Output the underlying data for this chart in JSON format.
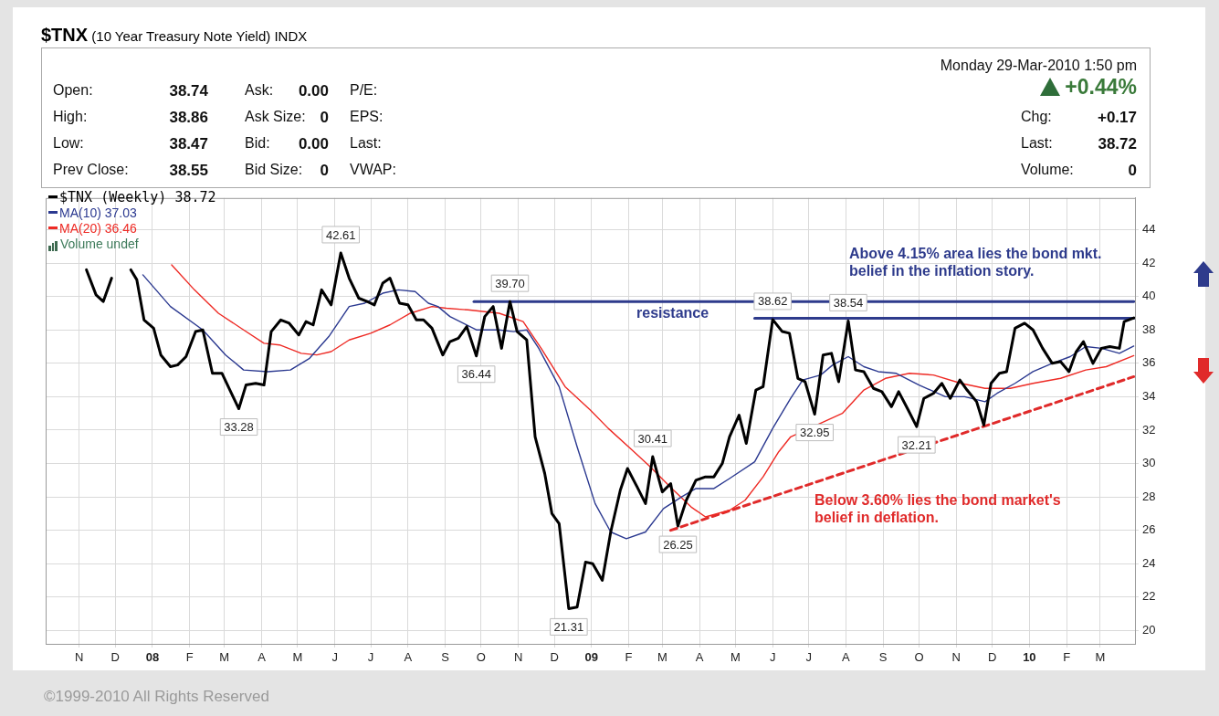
{
  "chart_data": [
    {
      "type": "other",
      "title": "$TNX (10 Year Treasury Note Yield) INDX",
      "annotations": [
        "Open:",
        "38.74",
        "Ask:",
        "0.00",
        "P/E:",
        "High:",
        "38.86",
        "Ask Size:",
        "0",
        "EPS:",
        "Low:",
        "38.47",
        "Bid:",
        "0.00",
        "Last:",
        "Prev Close:",
        "38.55",
        "Bid Size:",
        "0",
        "VWAP:",
        "Monday  29-Mar-2010  1:50 pm",
        "+0.44%",
        "Chg:",
        "+0.17",
        "Last:",
        "38.72",
        "Volume:",
        "0",
        "©1999-2010 All Rights Reserved"
      ]
    },
    {
      "type": "line",
      "xlim": [
        "2007-10-04",
        "2010-03-30"
      ],
      "xticks": [
        {
          "value": "2007-11-01",
          "label": "N"
        },
        {
          "value": "2007-12-01",
          "label": "D"
        },
        {
          "value": "2008-01-01",
          "label": "08"
        },
        {
          "value": "2008-02-01",
          "label": "F"
        },
        {
          "value": "2008-03-01",
          "label": "M"
        },
        {
          "value": "2008-04-01",
          "label": "A"
        },
        {
          "value": "2008-05-01",
          "label": "M"
        },
        {
          "value": "2008-06-01",
          "label": "J"
        },
        {
          "value": "2008-07-01",
          "label": "J"
        },
        {
          "value": "2008-08-01",
          "label": "A"
        },
        {
          "value": "2008-09-01",
          "label": "S"
        },
        {
          "value": "2008-10-01",
          "label": "O"
        },
        {
          "value": "2008-11-01",
          "label": "N"
        },
        {
          "value": "2008-12-01",
          "label": "D"
        },
        {
          "value": "2009-01-01",
          "label": "09"
        },
        {
          "value": "2009-02-01",
          "label": "F"
        },
        {
          "value": "2009-03-01",
          "label": "M"
        },
        {
          "value": "2009-04-01",
          "label": "A"
        },
        {
          "value": "2009-05-01",
          "label": "M"
        },
        {
          "value": "2009-06-01",
          "label": "J"
        },
        {
          "value": "2009-07-01",
          "label": "J"
        },
        {
          "value": "2009-08-01",
          "label": "A"
        },
        {
          "value": "2009-09-01",
          "label": "S"
        },
        {
          "value": "2009-10-01",
          "label": "O"
        },
        {
          "value": "2009-11-01",
          "label": "N"
        },
        {
          "value": "2009-12-01",
          "label": "D"
        },
        {
          "value": "2010-01-01",
          "label": "10"
        },
        {
          "value": "2010-02-01",
          "label": "F"
        },
        {
          "value": "2010-03-01",
          "label": "M"
        }
      ],
      "ylim": [
        19.2,
        45.9
      ],
      "yticks": [
        20,
        22,
        24,
        26,
        28,
        30,
        32,
        34,
        36,
        38,
        40,
        42,
        44
      ],
      "grid": true,
      "legend": "top left",
      "marker": "none",
      "series": [
        {
          "name": "$TNX (Weekly) 38.72",
          "type": "line",
          "color": "#000000",
          "x": [
            "2007-11-07",
            "2007-11-15",
            "2007-11-21",
            "2007-11-28",
            "2007-12-05",
            "2007-12-14",
            "2007-12-19",
            "2007-12-25",
            "2008-01-02",
            "2008-01-08",
            "2008-01-16",
            "2008-01-22",
            "2008-01-29",
            "2008-02-06",
            "2008-02-12",
            "2008-02-20",
            "2008-02-28",
            "2008-03-13",
            "2008-03-19",
            "2008-03-27",
            "2008-04-03",
            "2008-04-09",
            "2008-04-17",
            "2008-04-24",
            "2008-05-02",
            "2008-05-08",
            "2008-05-14",
            "2008-05-21",
            "2008-05-29",
            "2008-06-06",
            "2008-06-13",
            "2008-06-21",
            "2008-06-28",
            "2008-07-04",
            "2008-07-11",
            "2008-07-17",
            "2008-07-25",
            "2008-08-01",
            "2008-08-08",
            "2008-08-14",
            "2008-08-21",
            "2008-08-30",
            "2008-09-05",
            "2008-09-12",
            "2008-09-19",
            "2008-09-27",
            "2008-10-04",
            "2008-10-11",
            "2008-10-18",
            "2008-10-25",
            "2008-10-31",
            "2008-11-08",
            "2008-11-15",
            "2008-11-23",
            "2008-11-29",
            "2008-12-05",
            "2008-12-13",
            "2008-12-20",
            "2008-12-27",
            "2009-01-02",
            "2009-01-10",
            "2009-01-17",
            "2009-01-25",
            "2009-01-31",
            "2009-02-08",
            "2009-02-15",
            "2009-02-21",
            "2009-03-01",
            "2009-03-08",
            "2009-03-14",
            "2009-03-21",
            "2009-03-29",
            "2009-04-06",
            "2009-04-13",
            "2009-04-20",
            "2009-04-26",
            "2009-05-04",
            "2009-05-10",
            "2009-05-18",
            "2009-05-24",
            "2009-06-01",
            "2009-06-09",
            "2009-06-15",
            "2009-06-22",
            "2009-06-28",
            "2009-07-06",
            "2009-07-13",
            "2009-07-20",
            "2009-07-26",
            "2009-08-03",
            "2009-08-09",
            "2009-08-16",
            "2009-08-24",
            "2009-08-31",
            "2009-09-08",
            "2009-09-14",
            "2009-09-22",
            "2009-09-29",
            "2009-10-05",
            "2009-10-13",
            "2009-10-20",
            "2009-10-27",
            "2009-11-04",
            "2009-11-10",
            "2009-11-18",
            "2009-11-24",
            "2009-11-30",
            "2009-12-07",
            "2009-12-13",
            "2009-12-20",
            "2009-12-28",
            "2010-01-04",
            "2010-01-12",
            "2010-01-20",
            "2010-01-27",
            "2010-02-03",
            "2010-02-09",
            "2010-02-15",
            "2010-02-23",
            "2010-03-02",
            "2010-03-09",
            "2010-03-17",
            "2010-03-21",
            "2010-03-29"
          ],
          "values": [
            41.6,
            40.1,
            39.7,
            41.1,
            null,
            41.6,
            41.0,
            38.6,
            38.1,
            36.5,
            35.8,
            35.9,
            36.4,
            37.9,
            38.0,
            35.4,
            35.4,
            33.28,
            34.7,
            34.8,
            34.7,
            37.9,
            38.6,
            38.4,
            37.7,
            38.5,
            38.3,
            40.4,
            39.5,
            42.61,
            41.1,
            39.9,
            39.7,
            39.5,
            40.8,
            41.1,
            39.6,
            39.5,
            38.6,
            38.6,
            38.1,
            36.5,
            37.3,
            37.5,
            38.2,
            36.44,
            38.8,
            39.4,
            36.9,
            39.7,
            37.9,
            37.4,
            31.6,
            29.4,
            27.0,
            26.4,
            21.31,
            21.4,
            24.1,
            24.0,
            23.0,
            25.9,
            28.4,
            29.7,
            28.6,
            27.6,
            30.41,
            28.3,
            28.8,
            26.25,
            27.8,
            29.0,
            29.2,
            29.2,
            30.0,
            31.6,
            32.9,
            31.2,
            34.4,
            34.6,
            38.62,
            37.9,
            37.8,
            35.1,
            34.9,
            32.95,
            36.5,
            36.6,
            34.9,
            38.54,
            35.6,
            35.5,
            34.5,
            34.3,
            33.4,
            34.3,
            33.2,
            32.21,
            33.9,
            34.2,
            34.8,
            33.9,
            35.0,
            34.4,
            33.7,
            32.3,
            34.8,
            35.4,
            35.5,
            38.1,
            38.4,
            38.0,
            36.9,
            36.0,
            36.1,
            35.5,
            36.7,
            37.3,
            36.0,
            36.9,
            37.0,
            36.9,
            38.5,
            38.72
          ]
        },
        {
          "name": "MA(10) 37.03",
          "type": "line",
          "color": "#2b3990",
          "x": [
            "2007-12-24",
            "2008-01-16",
            "2008-02-12",
            "2008-03-02",
            "2008-03-17",
            "2008-04-06",
            "2008-04-25",
            "2008-05-11",
            "2008-05-27",
            "2008-06-13",
            "2008-06-26",
            "2008-07-11",
            "2008-07-24",
            "2008-08-07",
            "2008-08-18",
            "2008-08-26",
            "2008-09-05",
            "2008-09-27",
            "2008-10-16",
            "2008-10-28",
            "2008-11-08",
            "2008-11-18",
            "2008-12-05",
            "2008-12-20",
            "2009-01-04",
            "2009-01-17",
            "2009-01-30",
            "2009-02-15",
            "2009-03-02",
            "2009-03-17",
            "2009-03-29",
            "2009-04-13",
            "2009-04-26",
            "2009-05-17",
            "2009-06-01",
            "2009-06-16",
            "2009-06-26",
            "2009-07-11",
            "2009-07-21",
            "2009-08-03",
            "2009-08-16",
            "2009-08-28",
            "2009-09-12",
            "2009-10-01",
            "2009-10-23",
            "2009-11-08",
            "2009-11-25",
            "2009-12-05",
            "2009-12-20",
            "2010-01-04",
            "2010-01-20",
            "2010-02-04",
            "2010-02-17",
            "2010-03-02",
            "2010-03-17",
            "2010-03-29"
          ],
          "values": [
            41.3,
            39.4,
            38.0,
            36.5,
            35.6,
            35.5,
            35.6,
            36.3,
            37.6,
            39.4,
            39.6,
            40.2,
            40.4,
            40.3,
            39.6,
            39.4,
            38.8,
            38.0,
            38.0,
            37.9,
            38.0,
            36.9,
            34.6,
            31.0,
            27.6,
            25.9,
            25.5,
            25.9,
            27.3,
            28.0,
            28.5,
            28.5,
            29.1,
            30.1,
            32.1,
            33.9,
            35.0,
            35.3,
            35.9,
            36.4,
            35.8,
            35.5,
            35.4,
            34.7,
            34.0,
            34.0,
            33.7,
            34.2,
            34.8,
            35.5,
            36.0,
            36.4,
            37.0,
            36.9,
            36.6,
            37.03
          ]
        },
        {
          "name": "MA(20) 36.46",
          "type": "line",
          "color": "#ee2a24",
          "x": [
            "2008-01-17",
            "2008-02-05",
            "2008-02-25",
            "2008-03-17",
            "2008-04-03",
            "2008-04-16",
            "2008-05-04",
            "2008-05-17",
            "2008-05-29",
            "2008-06-13",
            "2008-07-01",
            "2008-07-17",
            "2008-08-03",
            "2008-08-21",
            "2008-09-02",
            "2008-09-20",
            "2008-10-16",
            "2008-11-05",
            "2008-11-20",
            "2008-12-10",
            "2008-12-31",
            "2009-01-15",
            "2009-02-04",
            "2009-02-19",
            "2009-03-09",
            "2009-03-25",
            "2009-04-06",
            "2009-04-26",
            "2009-05-09",
            "2009-05-24",
            "2009-06-06",
            "2009-06-16",
            "2009-07-29",
            "2009-08-16",
            "2009-09-03",
            "2009-09-23",
            "2009-10-13",
            "2009-11-05",
            "2009-11-25",
            "2009-12-16",
            "2010-01-04",
            "2010-01-27",
            "2010-02-17",
            "2010-03-06",
            "2010-03-29"
          ],
          "values": [
            41.9,
            40.4,
            39.0,
            38.0,
            37.2,
            37.1,
            36.6,
            36.5,
            36.7,
            37.4,
            37.8,
            38.3,
            39.0,
            39.4,
            39.3,
            39.2,
            39.0,
            38.5,
            36.9,
            34.6,
            33.2,
            32.1,
            30.8,
            29.8,
            28.5,
            27.4,
            26.8,
            27.2,
            27.8,
            29.2,
            30.7,
            31.6,
            33.0,
            34.4,
            35.1,
            35.4,
            35.3,
            34.8,
            34.5,
            34.5,
            34.8,
            35.1,
            35.6,
            35.8,
            36.46
          ]
        },
        {
          "type": "line",
          "color": "#2e3b8c",
          "x": [
            "2008-09-25",
            "2010-03-29"
          ],
          "values": [
            39.7,
            39.7
          ]
        },
        {
          "type": "line",
          "color": "#2e3b8c",
          "x": [
            "2009-05-17",
            "2010-03-29"
          ],
          "values": [
            38.7,
            38.7
          ]
        },
        {
          "type": "line",
          "color": "#e02a2a",
          "line_style": "dashed",
          "x": [
            "2009-03-08",
            "2010-03-29"
          ],
          "values": [
            26.0,
            35.2
          ]
        }
      ],
      "annotations": [
        "Volume undef",
        {
          "text": "42.61",
          "x": "2008-06-06",
          "y": 42.61
        },
        {
          "text": "33.28",
          "x": "2008-03-13",
          "y": 33.28
        },
        {
          "text": "36.44",
          "x": "2008-09-27",
          "y": 36.44
        },
        {
          "text": "39.70",
          "x": "2008-10-25",
          "y": 39.7
        },
        {
          "text": "21.31",
          "x": "2008-12-13",
          "y": 21.31
        },
        {
          "text": "30.41",
          "x": "2009-02-21",
          "y": 30.41
        },
        {
          "text": "26.25",
          "x": "2009-03-14",
          "y": 26.25
        },
        {
          "text": "38.62",
          "x": "2009-06-01",
          "y": 38.62
        },
        {
          "text": "32.95",
          "x": "2009-07-06",
          "y": 32.95
        },
        {
          "text": "38.54",
          "x": "2009-08-03",
          "y": 38.54
        },
        {
          "text": "32.21",
          "x": "2009-09-29",
          "y": 32.21
        },
        "resistance",
        "Above 4.15% area lies the bond mkt.\nbelief in the inflation story.",
        "Below 3.60% lies the bond market's\nbelief in deflation."
      ]
    }
  ]
}
